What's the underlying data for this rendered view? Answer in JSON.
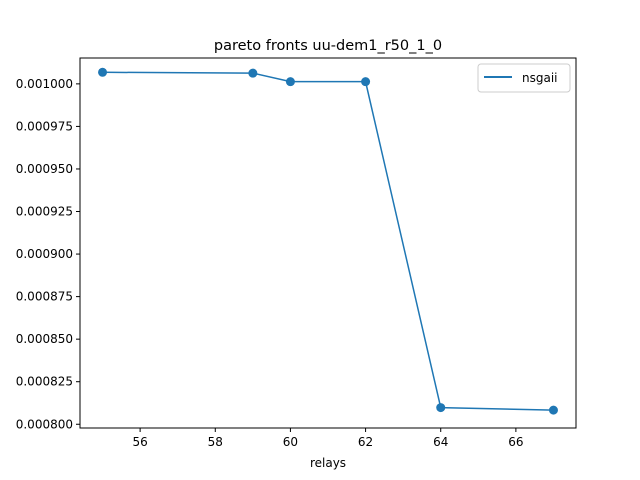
{
  "chart_data": {
    "type": "line",
    "title": "pareto fronts uu-dem1_r50_1_0",
    "xlabel": "relays",
    "ylabel": "",
    "xlim": [
      54.4,
      67.6
    ],
    "ylim": [
      0.0007978,
      0.0010152
    ],
    "xticks": [
      56,
      58,
      60,
      62,
      64,
      66
    ],
    "yticks": [
      0.0008,
      0.000825,
      0.00085,
      0.000875,
      0.0009,
      0.000925,
      0.00095,
      0.000975,
      0.001
    ],
    "ytick_labels": [
      "0.000800",
      "0.000825",
      "0.000850",
      "0.000875",
      "0.000900",
      "0.000925",
      "0.000950",
      "0.000975",
      "0.001000"
    ],
    "legend_position": "top-right",
    "grid": false,
    "series": [
      {
        "name": "nsgaii",
        "color": "#1f77b4",
        "marker": "circle",
        "points": [
          {
            "x": 55,
            "y": 0.0010068
          },
          {
            "x": 59,
            "y": 0.0010063
          },
          {
            "x": 60,
            "y": 0.0010013
          },
          {
            "x": 62,
            "y": 0.0010013
          },
          {
            "x": 64,
            "y": 0.0008098
          },
          {
            "x": 67,
            "y": 0.0008083
          }
        ]
      }
    ]
  }
}
